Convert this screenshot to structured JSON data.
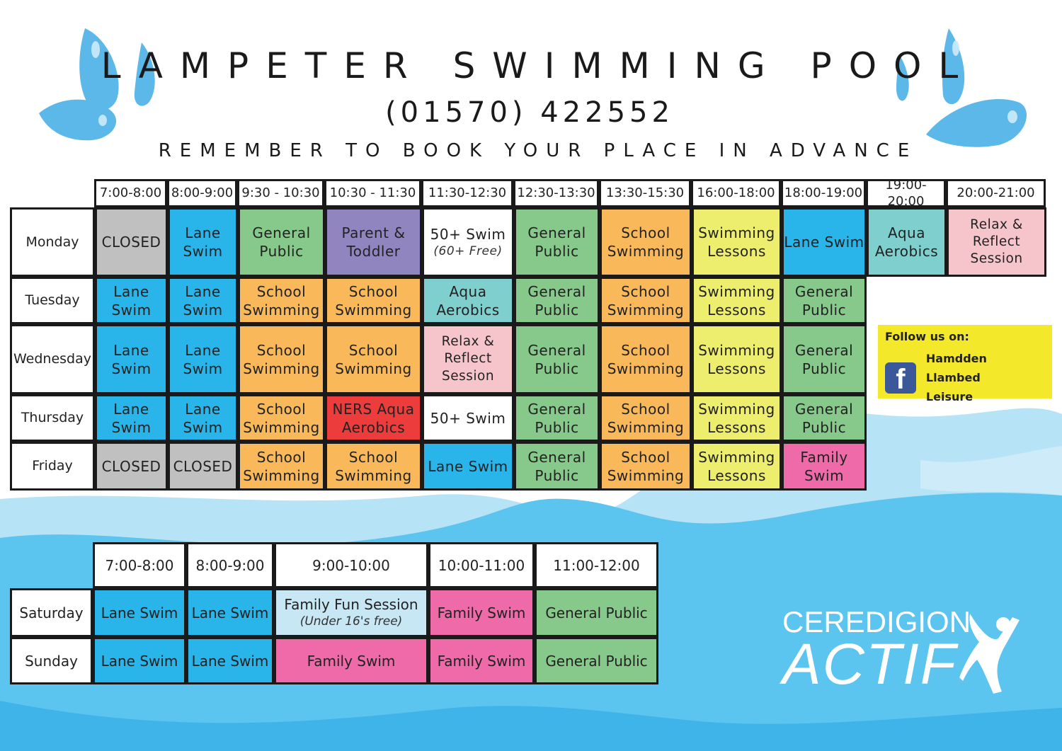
{
  "header": {
    "title": "LAMPETER SWIMMING POOL",
    "phone": "(01570) 422552",
    "subtitle": "REMEMBER TO BOOK YOUR PLACE IN ADVANCE"
  },
  "colors": {
    "closed": "#c0c0c0",
    "lane": "#29b5ea",
    "general": "#86c98a",
    "parent": "#9185c0",
    "white": "#ffffff",
    "school": "#f9b95a",
    "lessons": "#eeee6e",
    "aqua": "#7fcfcf",
    "relax": "#f6c5cb",
    "ners": "#ec3c3c",
    "family": "#ef6aa8",
    "funsession": "#c7e7f5",
    "facebook_bg": "#f3e829",
    "water": "#5bc4ef"
  },
  "weekday": {
    "times": [
      "7:00-8:00",
      "8:00-9:00",
      "9:30 - 10:30",
      "10:30 - 11:30",
      "11:30-12:30",
      "12:30-13:30",
      "13:30-15:30",
      "16:00-18:00",
      "18:00-19:00",
      "19:00-20:00",
      "20:00-21:00"
    ],
    "rows": [
      {
        "day": "Monday",
        "cells": [
          {
            "lines": [
              "CLOSED"
            ],
            "color": "closed"
          },
          {
            "lines": [
              "Lane",
              "Swim"
            ],
            "color": "lane"
          },
          {
            "lines": [
              "General",
              "Public"
            ],
            "color": "general"
          },
          {
            "lines": [
              "Parent &",
              "Toddler"
            ],
            "color": "parent"
          },
          {
            "lines": [
              "50+ Swim"
            ],
            "note": "(60+ Free)",
            "color": "white"
          },
          {
            "lines": [
              "General",
              "Public"
            ],
            "color": "general"
          },
          {
            "lines": [
              "School",
              "Swimming"
            ],
            "color": "school"
          },
          {
            "lines": [
              "Swimming",
              "Lessons"
            ],
            "color": "lessons"
          },
          {
            "lines": [
              "Lane Swim"
            ],
            "color": "lane"
          },
          {
            "lines": [
              "Aqua",
              "Aerobics"
            ],
            "color": "aqua"
          },
          {
            "lines": [
              "Relax &",
              "Reflect",
              "Session"
            ],
            "color": "relax"
          }
        ]
      },
      {
        "day": "Tuesday",
        "cells": [
          {
            "lines": [
              "Lane",
              "Swim"
            ],
            "color": "lane"
          },
          {
            "lines": [
              "Lane",
              "Swim"
            ],
            "color": "lane"
          },
          {
            "lines": [
              "School",
              "Swimming"
            ],
            "color": "school"
          },
          {
            "lines": [
              "School",
              "Swimming"
            ],
            "color": "school"
          },
          {
            "lines": [
              "Aqua",
              "Aerobics"
            ],
            "color": "aqua"
          },
          {
            "lines": [
              "General",
              "Public"
            ],
            "color": "general"
          },
          {
            "lines": [
              "School",
              "Swimming"
            ],
            "color": "school"
          },
          {
            "lines": [
              "Swimming",
              "Lessons"
            ],
            "color": "lessons"
          },
          {
            "lines": [
              "General",
              "Public"
            ],
            "color": "general"
          }
        ]
      },
      {
        "day": "Wednesday",
        "cells": [
          {
            "lines": [
              "Lane",
              "Swim"
            ],
            "color": "lane"
          },
          {
            "lines": [
              "Lane",
              "Swim"
            ],
            "color": "lane"
          },
          {
            "lines": [
              "School",
              "Swimming"
            ],
            "color": "school"
          },
          {
            "lines": [
              "School",
              "Swimming"
            ],
            "color": "school"
          },
          {
            "lines": [
              "Relax &",
              "Reflect",
              "Session"
            ],
            "color": "relax"
          },
          {
            "lines": [
              "General",
              "Public"
            ],
            "color": "general"
          },
          {
            "lines": [
              "School",
              "Swimming"
            ],
            "color": "school"
          },
          {
            "lines": [
              "Swimming",
              "Lessons"
            ],
            "color": "lessons"
          },
          {
            "lines": [
              "General",
              "Public"
            ],
            "color": "general"
          }
        ]
      },
      {
        "day": "Thursday",
        "cells": [
          {
            "lines": [
              "Lane",
              "Swim"
            ],
            "color": "lane"
          },
          {
            "lines": [
              "Lane",
              "Swim"
            ],
            "color": "lane"
          },
          {
            "lines": [
              "School",
              "Swimming"
            ],
            "color": "school"
          },
          {
            "lines": [
              "NERS Aqua",
              "Aerobics"
            ],
            "color": "ners"
          },
          {
            "lines": [
              "50+ Swim"
            ],
            "color": "white"
          },
          {
            "lines": [
              "General",
              "Public"
            ],
            "color": "general"
          },
          {
            "lines": [
              "School",
              "Swimming"
            ],
            "color": "school"
          },
          {
            "lines": [
              "Swimming",
              "Lessons"
            ],
            "color": "lessons"
          },
          {
            "lines": [
              "General",
              "Public"
            ],
            "color": "general"
          }
        ]
      },
      {
        "day": "Friday",
        "cells": [
          {
            "lines": [
              "CLOSED"
            ],
            "color": "closed"
          },
          {
            "lines": [
              "CLOSED"
            ],
            "color": "closed"
          },
          {
            "lines": [
              "School",
              "Swimming"
            ],
            "color": "school"
          },
          {
            "lines": [
              "School",
              "Swimming"
            ],
            "color": "school"
          },
          {
            "lines": [
              "Lane Swim"
            ],
            "color": "lane"
          },
          {
            "lines": [
              "General",
              "Public"
            ],
            "color": "general"
          },
          {
            "lines": [
              "School",
              "Swimming"
            ],
            "color": "school"
          },
          {
            "lines": [
              "Swimming",
              "Lessons"
            ],
            "color": "lessons"
          },
          {
            "lines": [
              "Family",
              "Swim"
            ],
            "color": "family"
          }
        ]
      }
    ]
  },
  "weekend": {
    "times": [
      "7:00-8:00",
      "8:00-9:00",
      "9:00-10:00",
      "10:00-11:00",
      "11:00-12:00"
    ],
    "rows": [
      {
        "day": "Saturday",
        "cells": [
          {
            "lines": [
              "Lane Swim"
            ],
            "color": "lane"
          },
          {
            "lines": [
              "Lane Swim"
            ],
            "color": "lane"
          },
          {
            "lines": [
              "Family Fun Session"
            ],
            "note": "(Under 16's free)",
            "color": "funsession"
          },
          {
            "lines": [
              "Family Swim"
            ],
            "color": "family"
          },
          {
            "lines": [
              "General Public"
            ],
            "color": "general"
          }
        ]
      },
      {
        "day": "Sunday",
        "cells": [
          {
            "lines": [
              "Lane Swim"
            ],
            "color": "lane"
          },
          {
            "lines": [
              "Lane Swim"
            ],
            "color": "lane"
          },
          {
            "lines": [
              "Family Swim"
            ],
            "color": "family"
          },
          {
            "lines": [
              "Family Swim"
            ],
            "color": "family"
          },
          {
            "lines": [
              "General Public"
            ],
            "color": "general"
          }
        ]
      }
    ]
  },
  "social": {
    "follow_label": "Follow us on:",
    "icon": "facebook-icon",
    "page_name_line1": "Hamdden Llambed",
    "page_name_line2": "Leisure"
  },
  "logo": {
    "line1": "CEREDIGION",
    "line2": "ACTIF",
    "icon": "swimmer-figure-icon"
  }
}
